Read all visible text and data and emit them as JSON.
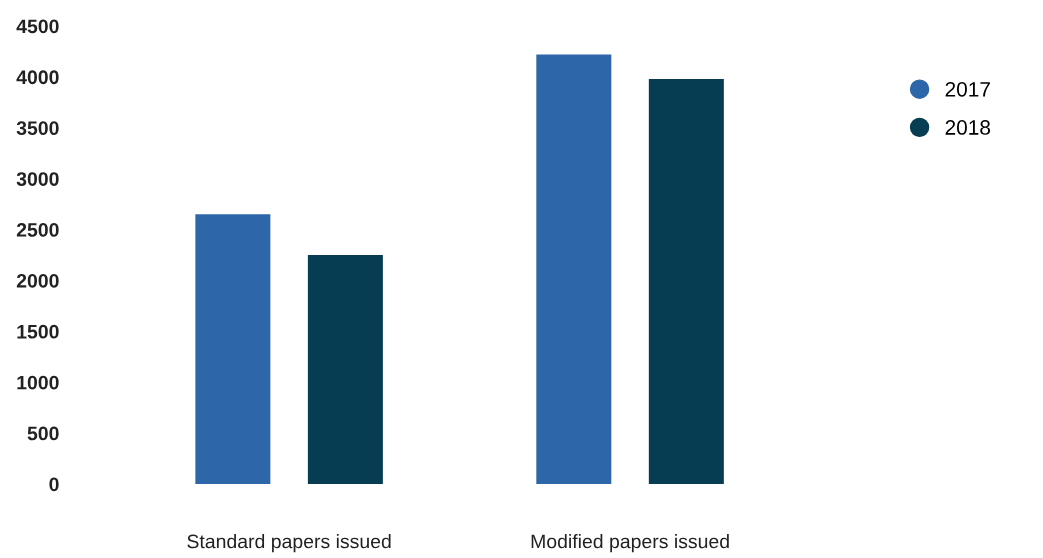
{
  "chart_data": {
    "type": "bar",
    "categories": [
      "Standard papers issued",
      "Modified papers issued"
    ],
    "series": [
      {
        "name": "2017",
        "color": "#2e67a9",
        "values": [
          2650,
          4220
        ]
      },
      {
        "name": "2018",
        "color": "#073d53",
        "values": [
          2250,
          3980
        ]
      }
    ],
    "ylim": [
      0,
      4500
    ],
    "yticks": [
      0,
      500,
      1000,
      1500,
      2000,
      2500,
      3000,
      3500,
      4000,
      4500
    ],
    "grid": false,
    "legend": "right"
  }
}
